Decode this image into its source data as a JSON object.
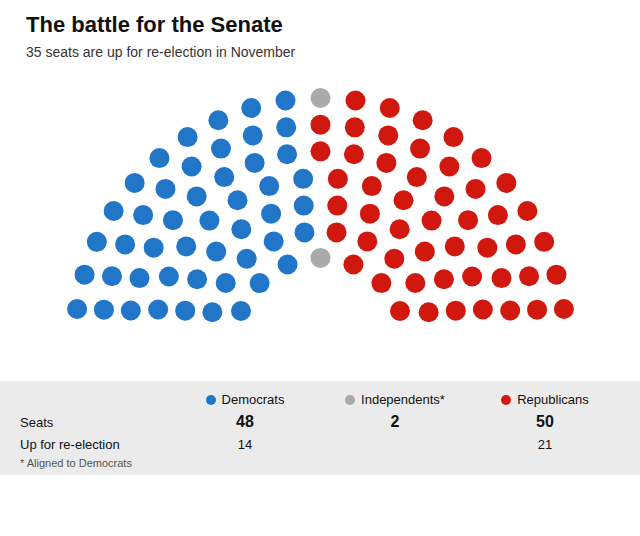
{
  "chart_data": {
    "type": "parliament",
    "title": "The battle for the Senate",
    "subtitle": "35 seats are up for re-election in November",
    "categories": [
      "Democrats",
      "Independents*",
      "Republicans"
    ],
    "values": [
      48,
      2,
      50
    ],
    "colors": [
      "#2176c7",
      "#aaaaaa",
      "#d0180e"
    ],
    "seats_label": "Seats",
    "re_election_label": "Up for re-election",
    "re_election": [
      14,
      null,
      21
    ],
    "footnote": "* Aligned to Democrats",
    "legend": "bottom",
    "tick_labels": false
  }
}
